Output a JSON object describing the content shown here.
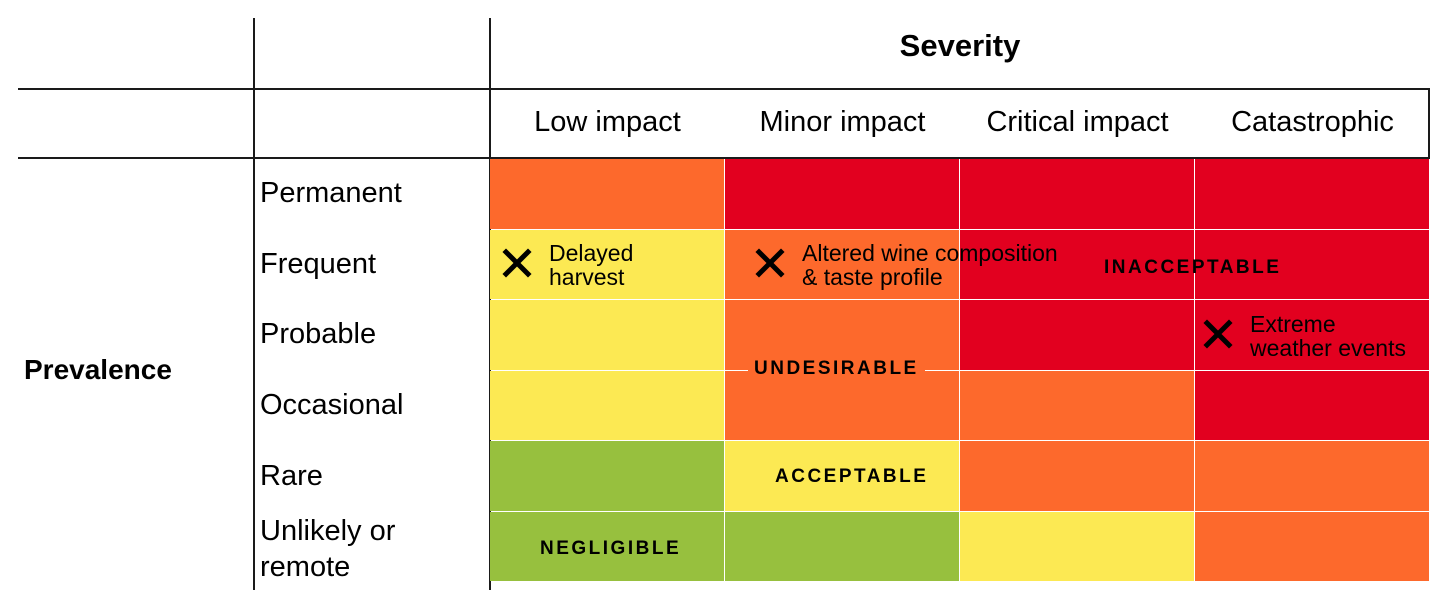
{
  "header": {
    "severity_title": "Severity",
    "prevalence_title": "Prevalence"
  },
  "columns": [
    "Low impact",
    "Minor impact",
    "Critical impact",
    "Catastrophic"
  ],
  "rows": [
    "Permanent",
    "Frequent",
    "Probable",
    "Occasional",
    "Rare",
    "Unlikely or remote"
  ],
  "colors": {
    "red": "#e2001f",
    "orange": "#fd692c",
    "yellow": "#fce953",
    "green": "#97c03e"
  },
  "grid": [
    [
      "orange",
      "red",
      "red",
      "red"
    ],
    [
      "yellow",
      "orange",
      "red",
      "red"
    ],
    [
      "yellow",
      "orange",
      "red",
      "red"
    ],
    [
      "yellow",
      "orange",
      "orange",
      "red"
    ],
    [
      "green",
      "yellow",
      "orange",
      "orange"
    ],
    [
      "green",
      "green",
      "yellow",
      "orange"
    ]
  ],
  "zones": {
    "inacceptable": "INACCEPTABLE",
    "undesirable": "UNDESIRABLE",
    "acceptable": "ACCEPTABLE",
    "negligible": "NEGLIGIBLE"
  },
  "hazards": [
    {
      "icon": "cross-icon",
      "line1": "Delayed",
      "line2": "harvest"
    },
    {
      "icon": "cross-icon",
      "line1": "Altered wine composition",
      "line2": "& taste profile"
    },
    {
      "icon": "cross-icon",
      "line1": "Extreme",
      "line2": "weather events"
    }
  ]
}
